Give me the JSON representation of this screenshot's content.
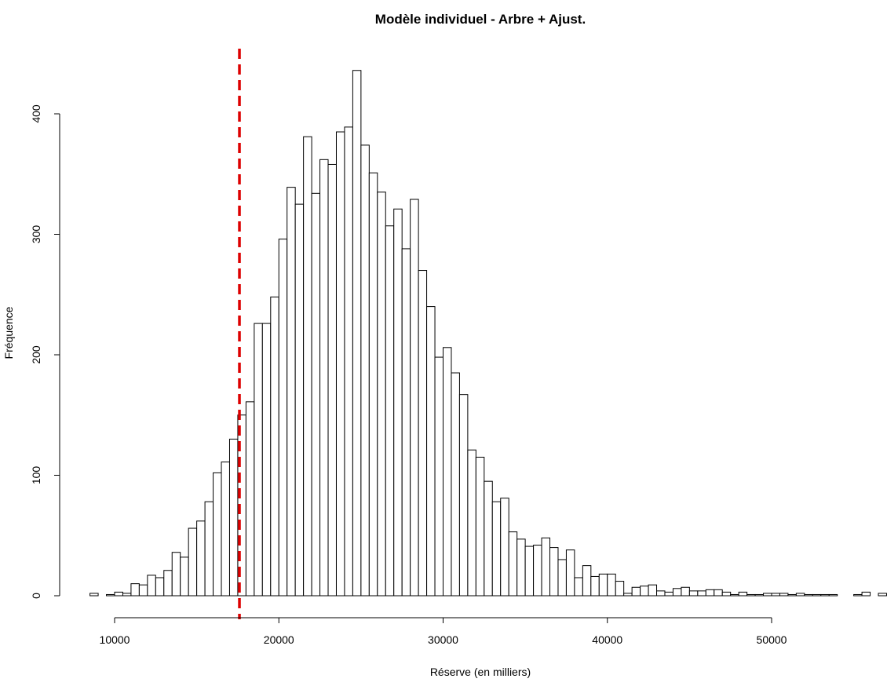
{
  "chart_data": {
    "type": "histogram",
    "title": "Modèle individuel - Arbre + Ajust.",
    "xlabel": "Réserve (en milliers)",
    "ylabel": "Fréquence",
    "xlim": [
      8500,
      56000
    ],
    "ylim": [
      0,
      436
    ],
    "x_ticks": [
      10000,
      20000,
      30000,
      40000,
      50000
    ],
    "x_tick_labels": [
      "10000",
      "20000",
      "30000",
      "40000",
      "50000"
    ],
    "y_ticks": [
      0,
      100,
      200,
      300,
      400
    ],
    "y_tick_labels": [
      "0",
      "100",
      "200",
      "300",
      "400"
    ],
    "grid": false,
    "bin_width": 500,
    "bin_start": 8500,
    "bar_fill": "#ffffff",
    "bar_stroke": "#000000",
    "counts": [
      2,
      0,
      1,
      3,
      2,
      10,
      9,
      17,
      15,
      21,
      36,
      32,
      56,
      62,
      78,
      102,
      111,
      130,
      150,
      161,
      226,
      226,
      248,
      296,
      339,
      325,
      381,
      334,
      362,
      358,
      385,
      389,
      436,
      374,
      351,
      335,
      307,
      321,
      288,
      329,
      270,
      240,
      198,
      206,
      185,
      167,
      121,
      115,
      95,
      78,
      81,
      53,
      47,
      41,
      42,
      48,
      40,
      30,
      38,
      15,
      25,
      16,
      18,
      18,
      12,
      2,
      7,
      8,
      9,
      4,
      3,
      6,
      7,
      4,
      4,
      5,
      5,
      3,
      1,
      3,
      1,
      1,
      2,
      2,
      2,
      1,
      2,
      1,
      1,
      1,
      1,
      0,
      0,
      1,
      3,
      0,
      2
    ],
    "reference_line": {
      "x": 17600,
      "color": "#dd0000",
      "style": "dashed"
    }
  }
}
